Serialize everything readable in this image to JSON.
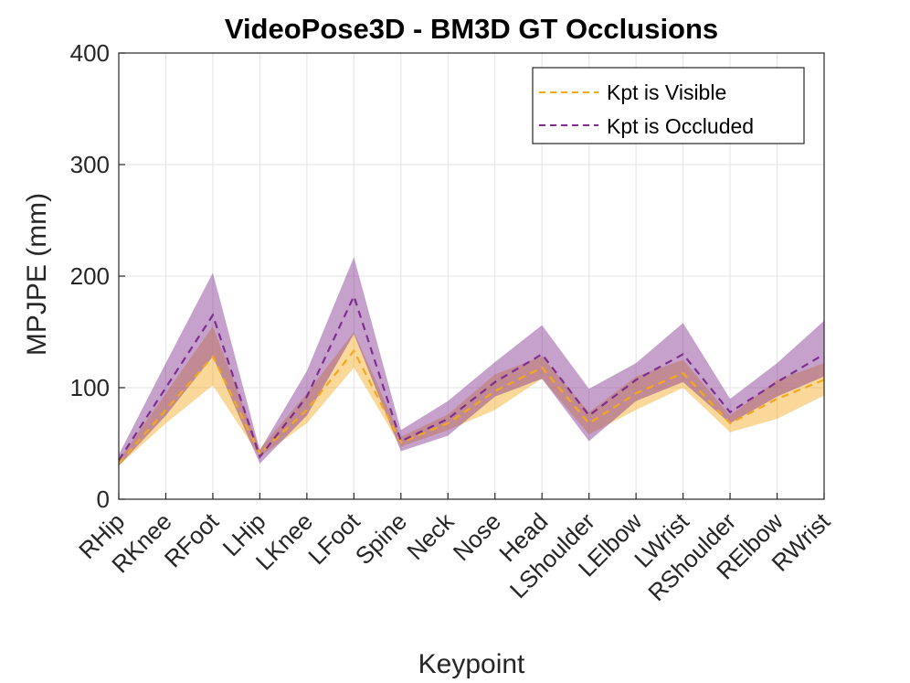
{
  "chart_data": {
    "type": "line",
    "title": "VideoPose3D - BM3D GT Occlusions",
    "xlabel": "Keypoint",
    "ylabel": "MPJPE (mm)",
    "ylim": [
      0,
      400
    ],
    "yticks": [
      0,
      100,
      200,
      300,
      400
    ],
    "grid": true,
    "legend_location": "top-right",
    "categories": [
      "RHip",
      "RKnee",
      "RFoot",
      "LHip",
      "LKnee",
      "LFoot",
      "Spine",
      "Neck",
      "Nose",
      "Head",
      "LShoulder",
      "LElbow",
      "LWrist",
      "RShoulder",
      "RElbow",
      "RWrist"
    ],
    "series": [
      {
        "name": "Kpt is Visible",
        "color": "#f2a81d",
        "band_alpha": 0.45,
        "line_style": "dashed",
        "values": [
          32,
          80,
          128,
          41,
          80,
          133,
          51,
          68,
          97,
          118,
          68,
          95,
          113,
          68,
          90,
          107
        ],
        "lower": [
          30,
          68,
          102,
          38,
          68,
          118,
          47,
          62,
          80,
          108,
          58,
          80,
          100,
          60,
          72,
          93
        ],
        "upper": [
          35,
          95,
          155,
          45,
          95,
          150,
          56,
          76,
          112,
          128,
          78,
          110,
          125,
          75,
          107,
          122
        ]
      },
      {
        "name": "Kpt is Occluded",
        "color": "#7e2f8e",
        "band_alpha": 0.45,
        "line_style": "dashed",
        "values": [
          35,
          100,
          165,
          38,
          92,
          182,
          52,
          72,
          105,
          130,
          75,
          107,
          130,
          78,
          105,
          130
        ],
        "lower": [
          30,
          75,
          128,
          32,
          75,
          148,
          43,
          57,
          92,
          108,
          52,
          88,
          105,
          68,
          92,
          110
        ],
        "upper": [
          40,
          122,
          203,
          44,
          115,
          217,
          62,
          88,
          123,
          156,
          99,
          122,
          158,
          90,
          122,
          160
        ]
      }
    ]
  }
}
